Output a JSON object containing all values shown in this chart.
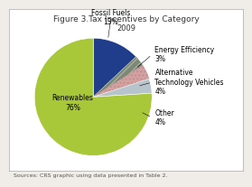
{
  "title": "Figure 3.Tax Incentives by Category",
  "subtitle": "2009",
  "slices": [
    {
      "label": "Fossil Fuels\n13%",
      "value": 13,
      "color": "#1f3d8a",
      "pct": 13
    },
    {
      "label": "Energy Efficiency\n3%",
      "value": 3,
      "color": "#7a8a72",
      "pct": 3
    },
    {
      "label": "Alternative\nTechnology Vehicles\n4%",
      "value": 4,
      "color": "#d4a0a0",
      "pct": 4
    },
    {
      "label": "Other\n4%",
      "value": 4,
      "color": "#b8c4cc",
      "pct": 4
    },
    {
      "label": "Renewables\n76%",
      "value": 76,
      "color": "#a8c83a",
      "pct": 76
    }
  ],
  "source_text": "Sources: CRS graphic using data presented in Table 2.",
  "background_color": "#f0ede8",
  "box_color": "#ffffff",
  "title_fontsize": 6.5,
  "subtitle_fontsize": 6,
  "label_fontsize": 5.5,
  "source_fontsize": 4.5
}
